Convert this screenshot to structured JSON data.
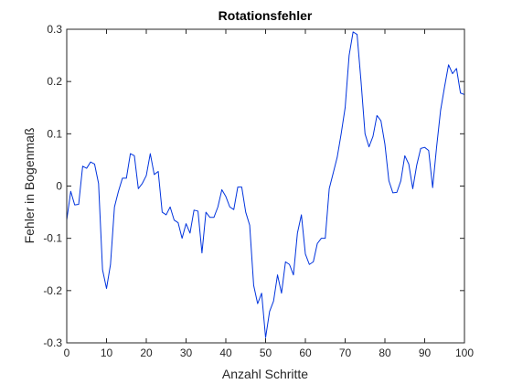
{
  "chart_data": {
    "type": "line",
    "title": "Rotationsfehler",
    "xlabel": "Anzahl Schritte",
    "ylabel": "Fehler in Bogenmaß",
    "xlim": [
      0,
      100
    ],
    "ylim": [
      -0.3,
      0.3
    ],
    "xticks": [
      "0",
      "10",
      "20",
      "30",
      "40",
      "50",
      "60",
      "70",
      "80",
      "90",
      "100"
    ],
    "yticks": [
      "-0.3",
      "-0.2",
      "-0.1",
      "0",
      "0.1",
      "0.2",
      "0.3"
    ],
    "grid": false,
    "line_color": "#0033dd",
    "series": [
      {
        "x": [
          0,
          1,
          2,
          3,
          4,
          5,
          6,
          7,
          8,
          9,
          10,
          11,
          12,
          13,
          14,
          15,
          16,
          17,
          18,
          19,
          20,
          21,
          22,
          23,
          24,
          25,
          26,
          27,
          28,
          29,
          30,
          31,
          32,
          33,
          34,
          35,
          36,
          37,
          38,
          39,
          40,
          41,
          42,
          43,
          44,
          45,
          46,
          47,
          48,
          49,
          50,
          51,
          52,
          53,
          54,
          55,
          56,
          57,
          58,
          59,
          60,
          61,
          62,
          63,
          64,
          65,
          66,
          67,
          68,
          69,
          70,
          71,
          72,
          73,
          74,
          75,
          76,
          77,
          78,
          79,
          80,
          81,
          82,
          83,
          84,
          85,
          86,
          87,
          88,
          89,
          90,
          91,
          92,
          93,
          94,
          95,
          96,
          97,
          98,
          99,
          100
        ],
        "y": [
          -0.065,
          -0.01,
          -0.036,
          -0.035,
          0.038,
          0.034,
          0.046,
          0.042,
          0.005,
          -0.16,
          -0.196,
          -0.15,
          -0.04,
          -0.01,
          0.015,
          0.015,
          0.062,
          0.058,
          -0.005,
          0.005,
          0.02,
          0.062,
          0.022,
          0.028,
          -0.05,
          -0.055,
          -0.04,
          -0.065,
          -0.07,
          -0.1,
          -0.072,
          -0.09,
          -0.046,
          -0.048,
          -0.128,
          -0.05,
          -0.06,
          -0.06,
          -0.04,
          -0.007,
          -0.02,
          -0.04,
          -0.045,
          -0.002,
          -0.002,
          -0.05,
          -0.075,
          -0.19,
          -0.225,
          -0.205,
          -0.29,
          -0.24,
          -0.22,
          -0.17,
          -0.205,
          -0.145,
          -0.15,
          -0.17,
          -0.09,
          -0.055,
          -0.13,
          -0.15,
          -0.145,
          -0.11,
          -0.1,
          -0.1,
          -0.005,
          0.025,
          0.055,
          0.1,
          0.15,
          0.25,
          0.295,
          0.29,
          0.2,
          0.1,
          0.075,
          0.095,
          0.135,
          0.125,
          0.08,
          0.01,
          -0.013,
          -0.012,
          0.01,
          0.058,
          0.042,
          -0.005,
          0.04,
          0.072,
          0.074,
          0.068,
          -0.003,
          0.075,
          0.145,
          0.19,
          0.232,
          0.215,
          0.225,
          0.178,
          0.175
        ]
      }
    ]
  }
}
